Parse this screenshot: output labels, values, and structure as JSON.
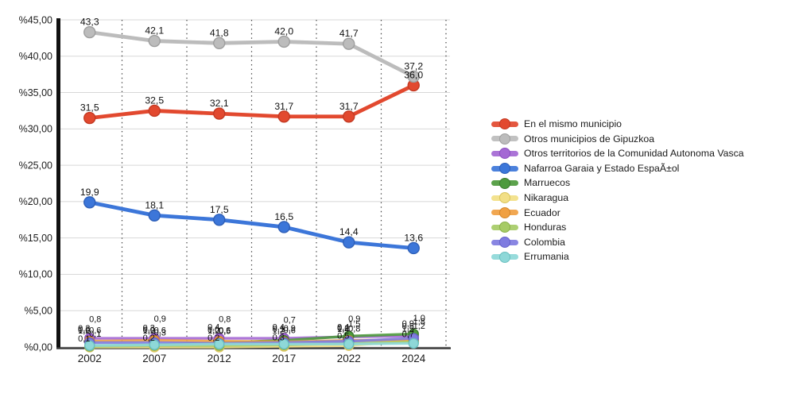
{
  "chart_data": {
    "type": "line",
    "title": "",
    "xlabel": "",
    "ylabel": "",
    "x_categories": [
      "2002",
      "2007",
      "2012",
      "2017",
      "2022",
      "2024"
    ],
    "y_axis": {
      "min": 0,
      "max": 45,
      "step": 5,
      "tick_labels": [
        "%0,00",
        "%5,00",
        "%10,00",
        "%15,00",
        "%20,00",
        "%25,00",
        "%30,00",
        "%35,00",
        "%40,00",
        "%45,00"
      ]
    },
    "grid": {
      "horizontal": "solid light gray every 5%",
      "vertical": "black dotted at category boundaries"
    },
    "legend_position": "right",
    "series": [
      {
        "name": "En el mismo municipio",
        "color": "#E2492F",
        "stroke": "#C33A23",
        "major": true,
        "values": [
          31.5,
          32.5,
          32.1,
          31.7,
          31.7,
          36.0
        ],
        "labels": [
          "31,5",
          "32,5",
          "32,1",
          "31,7",
          "31,7",
          "36,0"
        ]
      },
      {
        "name": "Otros municipios de Gipuzkoa",
        "color": "#BCBCBC",
        "stroke": "#9E9E9E",
        "major": true,
        "values": [
          43.3,
          42.1,
          41.8,
          42.0,
          41.7,
          37.2
        ],
        "labels": [
          "43,3",
          "42,1",
          "41,8",
          "42,0",
          "41,7",
          "37,2"
        ]
      },
      {
        "name": "Otros territorios de la Comunidad Autonoma Vasca",
        "color": "#A468D4",
        "stroke": "#8B4FBF",
        "major": false,
        "values": [
          1.2,
          1.2,
          1.2,
          1.2,
          1.4,
          1.5
        ],
        "labels": [
          "1,2",
          "1,2",
          "1,2",
          "1,2",
          "1,4",
          "1,5"
        ]
      },
      {
        "name": "Nafarroa Garaia y Estado EspaÃ±ol",
        "color": "#3C76D9",
        "stroke": "#2E5FB8",
        "major": true,
        "values": [
          19.9,
          18.1,
          17.5,
          16.5,
          14.4,
          13.6
        ],
        "labels": [
          "19,9",
          "18,1",
          "17,5",
          "16,5",
          "14,4",
          "13,6"
        ]
      },
      {
        "name": "Marruecos",
        "color": "#4E9A3D",
        "stroke": "#3D7A2F",
        "major": false,
        "values": [
          0.1,
          0.3,
          0.6,
          0.9,
          1.5,
          1.8
        ],
        "labels": [
          "0,1",
          "0,3",
          "0,6",
          "0,9",
          "1,5",
          "1,8"
        ]
      },
      {
        "name": "Nikaragua",
        "color": "#F2DF86",
        "stroke": "#D9C45C",
        "major": false,
        "values": [
          0.0,
          0.0,
          0.0,
          0.1,
          0.2,
          0.9
        ],
        "labels": [
          "0,0",
          "0,0",
          "0,0",
          "0,1",
          "0,2",
          "0,9"
        ]
      },
      {
        "name": "Ecuador",
        "color": "#F0A042",
        "stroke": "#D4862A",
        "major": false,
        "values": [
          0.8,
          0.9,
          0.8,
          0.7,
          0.9,
          1.0
        ],
        "labels": [
          "0,8",
          "0,9",
          "0,8",
          "0,7",
          "0,9",
          "1,0"
        ]
      },
      {
        "name": "Honduras",
        "color": "#A6CB66",
        "stroke": "#8AB04A",
        "major": false,
        "values": [
          0.1,
          0.2,
          0.2,
          0.3,
          0.5,
          0.7
        ],
        "labels": [
          "0,1",
          "0,2",
          "0,2",
          "0,3",
          "0,5",
          "0,7"
        ]
      },
      {
        "name": "Colombia",
        "color": "#7F7CE0",
        "stroke": "#6663C9",
        "major": false,
        "values": [
          0.6,
          0.6,
          0.5,
          0.6,
          0.8,
          1.2
        ],
        "labels": [
          "0,6",
          "0,6",
          "0,5",
          "0,6",
          "0,8",
          "1,2"
        ]
      },
      {
        "name": "Errumania",
        "color": "#8ED8D8",
        "stroke": "#6ABFBF",
        "major": false,
        "values": [
          0.2,
          0.3,
          0.4,
          0.4,
          0.4,
          0.5
        ],
        "labels": [
          "0,2",
          "0,3",
          "0,4",
          "0,4",
          "0,4",
          "0,5"
        ]
      }
    ]
  }
}
